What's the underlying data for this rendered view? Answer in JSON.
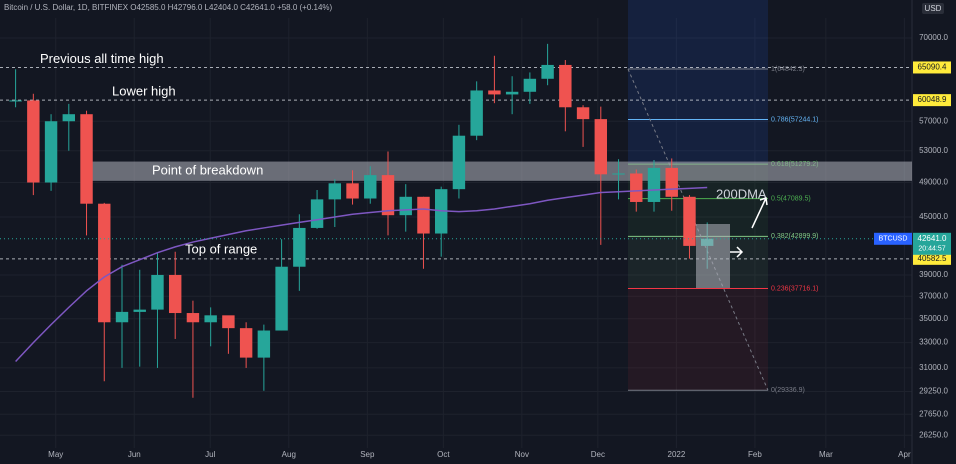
{
  "chart_data": {
    "type": "candlestick",
    "header": "Bitcoin / U.S. Dollar, 1D, BITFINEX O42585.0 H42796.0 L42404.0 C42641.0 +58.0 (+0.14%)",
    "currency": "USD",
    "log_scale": true,
    "ylim": [
      25440,
      76890
    ],
    "yticks": [
      {
        "value": 70000,
        "label": "70000.0"
      },
      {
        "value": 57000,
        "label": "57000.0"
      },
      {
        "value": 53000,
        "label": "53000.0"
      },
      {
        "value": 49000,
        "label": "49000.0"
      },
      {
        "value": 45000,
        "label": "45000.0"
      },
      {
        "value": 39000,
        "label": "39000.0"
      },
      {
        "value": 37000,
        "label": "37000.0"
      },
      {
        "value": 35000,
        "label": "35000.0"
      },
      {
        "value": 33000,
        "label": "33000.0"
      },
      {
        "value": 31000,
        "label": "31000.0"
      },
      {
        "value": 29250,
        "label": "29250.0"
      },
      {
        "value": 27650,
        "label": "27650.0"
      },
      {
        "value": 26250,
        "label": "26250.0"
      }
    ],
    "xlim": [
      "2021-04-09",
      "2022-04-04"
    ],
    "xticks": [
      {
        "value": "2021-05-01",
        "label": "May"
      },
      {
        "value": "2021-06-01",
        "label": "Jun"
      },
      {
        "value": "2021-07-01",
        "label": "Jul"
      },
      {
        "value": "2021-08-01",
        "label": "Aug"
      },
      {
        "value": "2021-09-01",
        "label": "Sep"
      },
      {
        "value": "2021-10-01",
        "label": "Oct"
      },
      {
        "value": "2021-11-01",
        "label": "Nov"
      },
      {
        "value": "2021-12-01",
        "label": "Dec"
      },
      {
        "value": "2022-01-01",
        "label": "2022"
      },
      {
        "value": "2022-02-01",
        "label": "Feb"
      },
      {
        "value": "2022-03-01",
        "label": "Mar"
      },
      {
        "value": "2022-04-01",
        "label": "Apr"
      }
    ],
    "up_color": "#26a69a",
    "down_color": "#ef5350",
    "x": [
      "2021-04-12",
      "2021-04-19",
      "2021-04-26",
      "2021-05-03",
      "2021-05-10",
      "2021-05-17",
      "2021-05-24",
      "2021-05-31",
      "2021-06-07",
      "2021-06-14",
      "2021-06-21",
      "2021-06-28",
      "2021-07-05",
      "2021-07-12",
      "2021-07-19",
      "2021-07-26",
      "2021-08-02",
      "2021-08-09",
      "2021-08-16",
      "2021-08-23",
      "2021-08-30",
      "2021-09-06",
      "2021-09-13",
      "2021-09-20",
      "2021-09-27",
      "2021-10-04",
      "2021-10-11",
      "2021-10-18",
      "2021-10-25",
      "2021-11-01",
      "2021-11-08",
      "2021-11-15",
      "2021-11-22",
      "2021-11-29",
      "2021-12-06",
      "2021-12-13",
      "2021-12-20",
      "2021-12-27",
      "2022-01-03",
      "2022-01-10"
    ],
    "open": [
      60000,
      60000,
      49000,
      57000,
      58000,
      46500,
      34700,
      35600,
      35800,
      39000,
      35500,
      34700,
      35300,
      34200,
      31800,
      34000,
      39800,
      43800,
      47000,
      48900,
      47100,
      49900,
      45200,
      47300,
      43200,
      48200,
      55000,
      61500,
      60900,
      61300,
      63300,
      65500,
      59000,
      57300,
      50000,
      50100,
      46700,
      50800,
      47300,
      41900
    ],
    "high": [
      64800,
      61000,
      58000,
      59500,
      58500,
      46600,
      40000,
      39500,
      41200,
      41300,
      36600,
      36000,
      35100,
      34700,
      34500,
      42600,
      45300,
      48100,
      49400,
      50500,
      51000,
      52900,
      48800,
      47300,
      48500,
      56500,
      62900,
      67000,
      63700,
      64300,
      69000,
      66300,
      59300,
      59100,
      51900,
      50600,
      51800,
      52000,
      47500,
      44400
    ],
    "low": [
      59000,
      47500,
      48000,
      53000,
      43000,
      30000,
      31000,
      31100,
      31000,
      33300,
      28800,
      32700,
      32100,
      31000,
      29300,
      34000,
      37500,
      43700,
      43900,
      46400,
      46500,
      43000,
      43400,
      39600,
      40800,
      47100,
      54400,
      59600,
      58000,
      59500,
      62300,
      55600,
      53500,
      42000,
      47000,
      45600,
      45600,
      45700,
      40600,
      39600
    ],
    "close": [
      60000,
      49000,
      57000,
      58000,
      46500,
      34700,
      35600,
      35800,
      39000,
      35500,
      34700,
      35300,
      34200,
      31800,
      34000,
      39800,
      43800,
      47000,
      48900,
      47100,
      49900,
      45200,
      47300,
      43200,
      48200,
      55000,
      61500,
      60900,
      61300,
      63300,
      65500,
      59000,
      57300,
      50000,
      50100,
      46700,
      50800,
      47300,
      41900,
      42641
    ],
    "ma": {
      "name": "200DMA",
      "color": "#7e57c2",
      "values": [
        31500,
        33000,
        34500,
        36000,
        37500,
        38800,
        39800,
        40500,
        41200,
        41800,
        42300,
        42700,
        43100,
        43500,
        43800,
        44100,
        44400,
        44700,
        45000,
        45300,
        45500,
        45700,
        45800,
        45900,
        45700,
        45600,
        45700,
        45900,
        46200,
        46500,
        46900,
        47200,
        47500,
        47800,
        47900,
        48000,
        48100,
        48200,
        48300,
        48400
      ]
    },
    "hlines": [
      {
        "value": 65090.4,
        "label": "65090.4",
        "text": "Previous all time high"
      },
      {
        "value": 60048.9,
        "label": "60048.9",
        "text": "Lower high"
      },
      {
        "value": 40582.5,
        "label": "40582.5",
        "text": "Top of range"
      }
    ],
    "zone": {
      "text": "Point of breakdown",
      "range": [
        49200,
        51600
      ]
    },
    "last_price": {
      "value": 42641.0,
      "label": "42641.0",
      "ticker": "BTCUSD",
      "countdown": "20:44:57"
    },
    "fib_levels": [
      {
        "value": 64842.3,
        "label": "1(64842.3)",
        "color": "#787b86"
      },
      {
        "value": 57244.1,
        "label": "0.786(57244.1)",
        "color": "#64b5f6"
      },
      {
        "value": 51279.2,
        "label": "0.618(51279.2)",
        "color": "#4caf50"
      },
      {
        "value": 47089.5,
        "label": "0.5(47089.5)",
        "color": "#4caf50"
      },
      {
        "value": 42899.9,
        "label": "0.382(42899.9)",
        "color": "#81c784"
      },
      {
        "value": 37716.1,
        "label": "0.236(37716.1)",
        "color": "#f23645"
      },
      {
        "value": 29336.9,
        "label": "0(29336.9)",
        "color": "#787b86"
      }
    ]
  }
}
